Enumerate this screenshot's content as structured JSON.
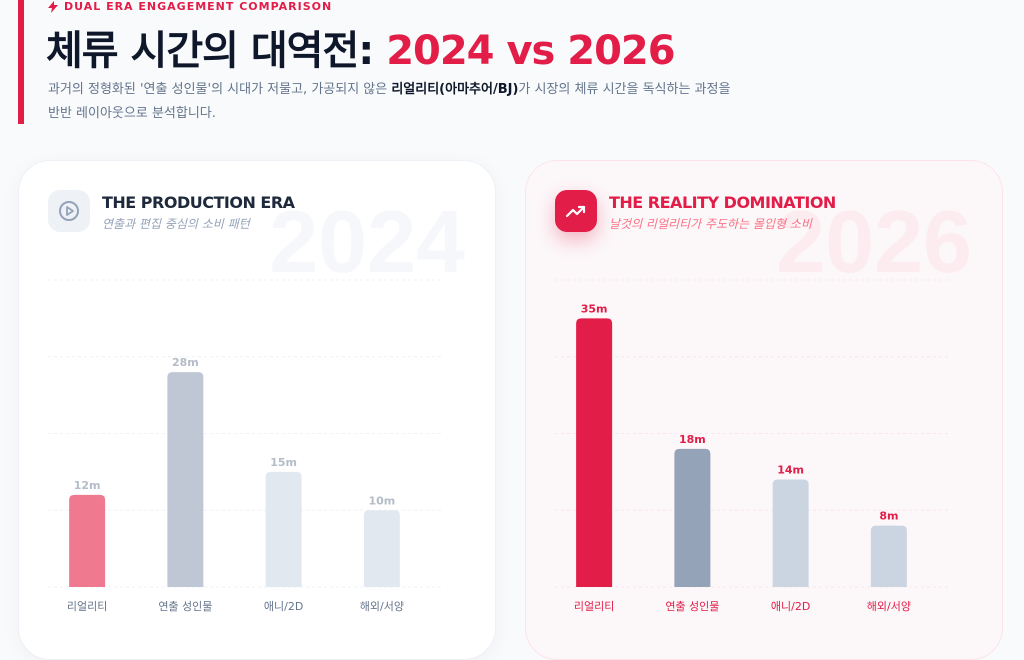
{
  "header": {
    "eyebrow": "DUAL ERA ENGAGEMENT COMPARISON",
    "eyebrow_icon": "lightning-icon",
    "title_main": "체류 시간의 대역전: ",
    "title_highlight": "2024 vs 2026",
    "desc_part1": "과거의 정형화된 '연출 성인물'의 시대가 저물고, 가공되지 않은 ",
    "desc_bold": "리얼리티(아마추어/BJ)",
    "desc_part2": "가 시장의 체류 시간을 독식하는 과정을 반반 레이아웃으로 분석합니다."
  },
  "colors": {
    "accent": "#e11d48"
  },
  "chart_data": [
    {
      "type": "bar",
      "title": "THE PRODUCTION ERA",
      "subtitle": "연출과 편집 중심의 소비 패턴",
      "watermark": "2024",
      "icon": "play-circle-icon",
      "categories": [
        "리얼리티",
        "연출 성인물",
        "애니/2D",
        "해외/서양"
      ],
      "values": [
        12,
        28,
        15,
        10
      ],
      "value_labels": [
        "12m",
        "28m",
        "15m",
        "10m"
      ],
      "bar_colors": [
        "#ef7a8f",
        "#c0c7d4",
        "#e2e8f0",
        "#e2e8f0"
      ],
      "ylim": [
        0,
        40
      ],
      "grid": true,
      "xlabel": "",
      "ylabel": ""
    },
    {
      "type": "bar",
      "title": "THE REALITY DOMINATION",
      "subtitle": "날것의 리얼리티가 주도하는 몰입형 소비",
      "watermark": "2026",
      "icon": "trending-up-icon",
      "categories": [
        "리얼리티",
        "연출 성인물",
        "애니/2D",
        "해외/서양"
      ],
      "values": [
        35,
        18,
        14,
        8
      ],
      "value_labels": [
        "35m",
        "18m",
        "14m",
        "8m"
      ],
      "bar_colors": [
        "#e11d48",
        "#94a3b8",
        "#cbd5e1",
        "#cbd5e1"
      ],
      "ylim": [
        0,
        40
      ],
      "grid": true,
      "xlabel": "",
      "ylabel": ""
    }
  ]
}
